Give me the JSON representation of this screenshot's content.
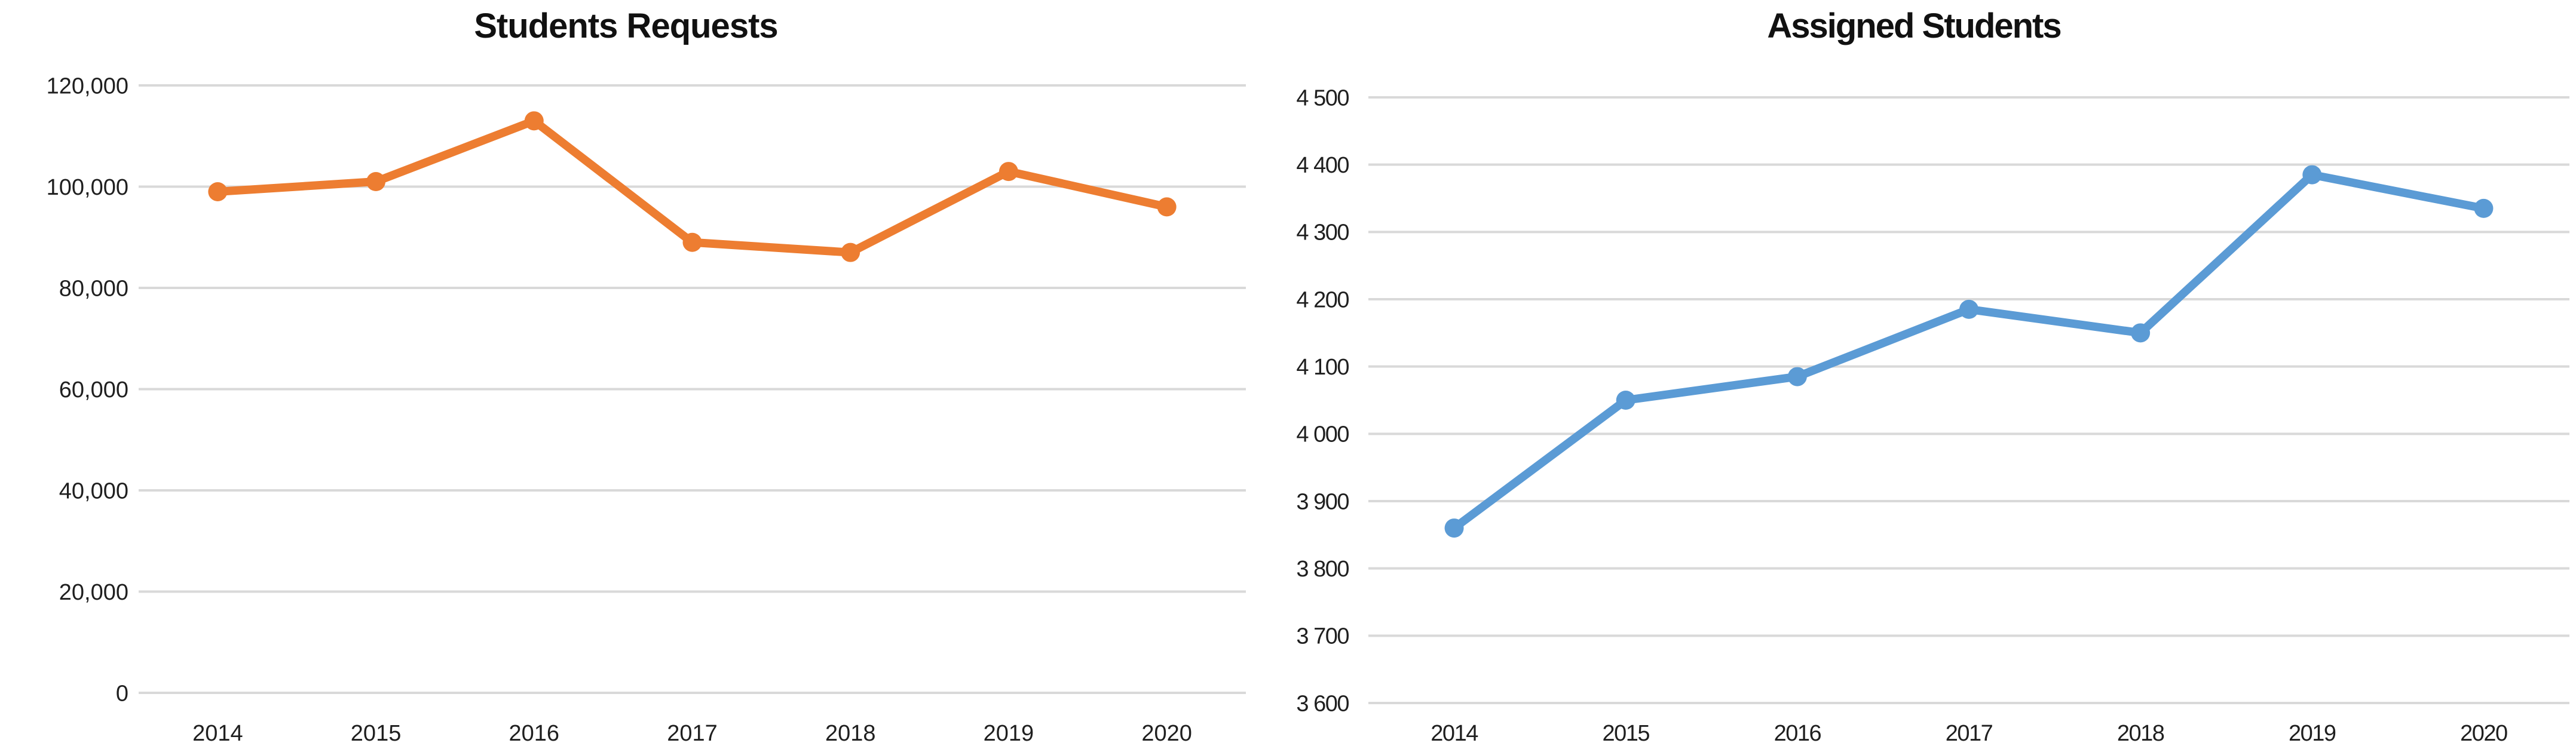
{
  "chart_data": [
    {
      "type": "line",
      "title": "Students Requests",
      "categories": [
        "2014",
        "2015",
        "2016",
        "2017",
        "2018",
        "2019",
        "2020"
      ],
      "values": [
        99000,
        101000,
        113000,
        89000,
        87000,
        103000,
        96000
      ],
      "ylim": [
        0,
        120000
      ],
      "ystep": 20000,
      "y_tick_labels": [
        "0",
        "20,000",
        "40,000",
        "60,000",
        "80,000",
        "100,000",
        "120,000"
      ],
      "xlabel": "",
      "ylabel": "",
      "grid": "horizontal",
      "legend": "none",
      "line_color": "#ED7D31",
      "marker": "circle",
      "gridline_color": "#D9D9D9",
      "label_color": "#1f1f1f"
    },
    {
      "type": "line",
      "title": "Assigned Students",
      "categories": [
        "2014",
        "2015",
        "2016",
        "2017",
        "2018",
        "2019",
        "2020"
      ],
      "values": [
        3860,
        4050,
        4085,
        4185,
        4150,
        4385,
        4335
      ],
      "ylim": [
        3600,
        4500
      ],
      "ystep": 100,
      "y_tick_labels": [
        "3 600",
        "3 700",
        "3 800",
        "3 900",
        "4 000",
        "4 100",
        "4 200",
        "4 300",
        "4 400",
        "4 500"
      ],
      "xlabel": "",
      "ylabel": "",
      "grid": "horizontal",
      "legend": "none",
      "line_color": "#5B9BD5",
      "marker": "circle",
      "gridline_color": "#D9D9D9",
      "label_color": "#1f1f1f"
    }
  ]
}
